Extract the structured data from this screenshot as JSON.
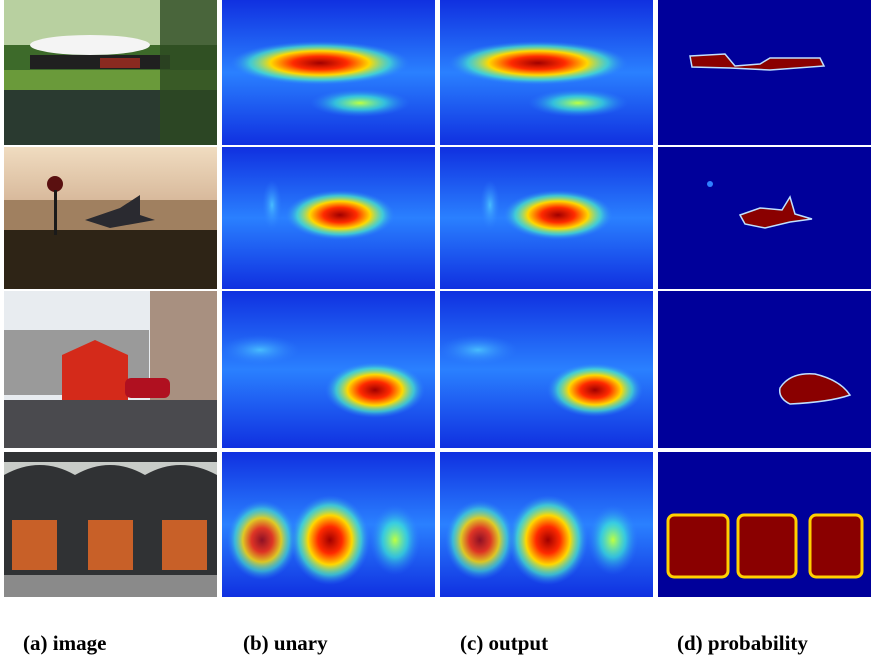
{
  "captions": [
    "(a) image",
    "(b) unary",
    "(c) output",
    "(d) probability"
  ]
}
